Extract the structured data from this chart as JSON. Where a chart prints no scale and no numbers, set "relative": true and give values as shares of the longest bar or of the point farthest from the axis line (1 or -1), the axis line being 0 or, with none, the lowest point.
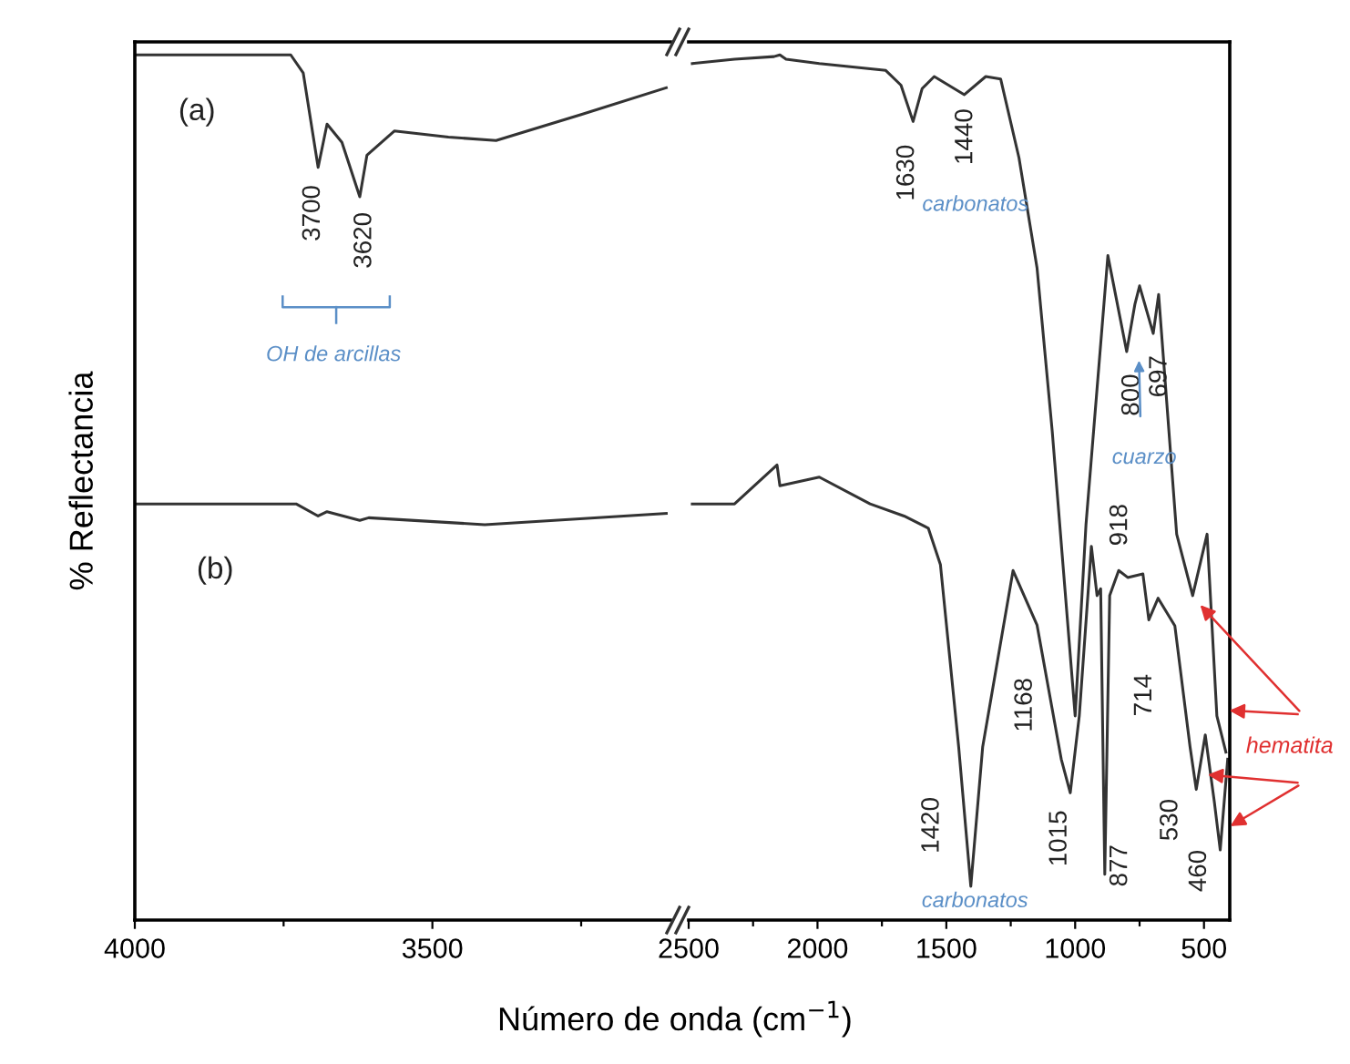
{
  "chart_data": [
    {
      "type": "line",
      "relative": true,
      "ylabel": "% Reflectancia",
      "xlim": [
        4000,
        3100
      ],
      "xticks": [
        4000,
        {
          "value": 3750,
          "label": null
        },
        3500,
        {
          "value": 3250,
          "label": null
        }
      ],
      "grid": false,
      "legend": false,
      "series": [
        {
          "color": "#333333",
          "x": [
            4000,
            3738,
            3717,
            3692,
            3677,
            3652,
            3622,
            3610,
            3564,
            3473,
            3393,
            3250,
            3107
          ],
          "values": [
            1.0,
            1.0,
            0.979,
            0.87,
            0.92,
            0.899,
            0.836,
            0.884,
            0.912,
            0.905,
            0.901,
            0.931,
            0.962
          ]
        },
        {
          "color": "#333333",
          "x": [
            4000,
            3729,
            3692,
            3677,
            3622,
            3607,
            3412,
            3107
          ],
          "values": [
            0.481,
            0.481,
            0.467,
            0.472,
            0.462,
            0.465,
            0.457,
            0.47
          ]
        }
      ],
      "annotations": [
        "(a)",
        "(b)",
        "3700",
        "3620",
        "OH de arcillas"
      ]
    },
    {
      "type": "line",
      "relative": true,
      "xlabel": "Número de onda (cm$^{−1}$)",
      "xlim": [
        2500,
        400
      ],
      "xticks": [
        2500,
        {
          "value": 2250,
          "label": null
        },
        2000,
        {
          "value": 1750,
          "label": null
        },
        1500,
        {
          "value": 1250,
          "label": null
        },
        1000,
        {
          "value": 750,
          "label": null
        },
        500
      ],
      "grid": false,
      "legend": false,
      "series": [
        {
          "color": "#333333",
          "x": [
            2486,
            2322,
            2169,
            2146,
            2122,
            1993,
            1735,
            1676,
            1629,
            1594,
            1547,
            1430,
            1347,
            1289,
            1218,
            1148,
            1089,
            1000,
            958,
            873,
            800,
            768,
            750,
            697,
            676,
            606,
            544,
            488,
            450,
            415
          ],
          "values": [
            0.99,
            0.995,
            0.998,
            1.0,
            0.995,
            0.99,
            0.982,
            0.965,
            0.923,
            0.961,
            0.975,
            0.954,
            0.975,
            0.972,
            0.881,
            0.754,
            0.565,
            0.236,
            0.457,
            0.768,
            0.657,
            0.712,
            0.733,
            0.678,
            0.723,
            0.446,
            0.375,
            0.446,
            0.236,
            0.194
          ]
        },
        {
          "color": "#333333",
          "x": [
            2486,
            2322,
            2157,
            2146,
            1993,
            1796,
            1664,
            1570,
            1523,
            1452,
            1405,
            1359,
            1241,
            1148,
            1054,
            1019,
            984,
            937,
            915,
            901,
            885,
            866,
            831,
            796,
            737,
            714,
            678,
            613,
            554,
            530,
            495,
            460,
            437,
            408
          ],
          "values": [
            0.481,
            0.481,
            0.526,
            0.502,
            0.512,
            0.481,
            0.467,
            0.453,
            0.411,
            0.2,
            0.039,
            0.2,
            0.404,
            0.341,
            0.186,
            0.147,
            0.236,
            0.432,
            0.375,
            0.383,
            0.053,
            0.375,
            0.404,
            0.396,
            0.4,
            0.347,
            0.372,
            0.34,
            0.2,
            0.151,
            0.214,
            0.137,
            0.081,
            0.186
          ]
        }
      ],
      "annotations": [
        "1630",
        "1440",
        "carbonatos",
        "800",
        "697",
        "cuarzo",
        "918",
        "1168",
        "1420",
        "1015",
        "877",
        "714",
        "530",
        "460",
        "carbonatos",
        "hematita"
      ]
    }
  ]
}
